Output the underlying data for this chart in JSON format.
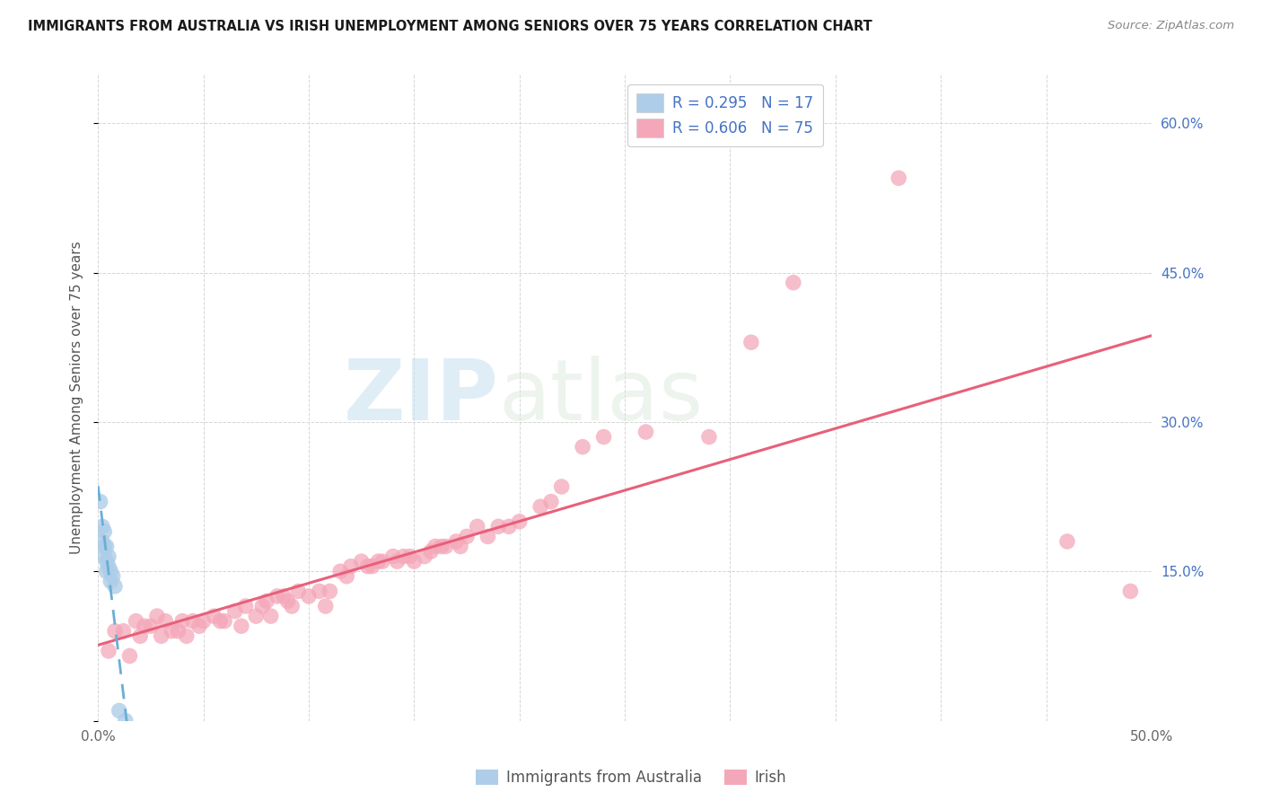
{
  "title": "IMMIGRANTS FROM AUSTRALIA VS IRISH UNEMPLOYMENT AMONG SENIORS OVER 75 YEARS CORRELATION CHART",
  "source": "Source: ZipAtlas.com",
  "ylabel": "Unemployment Among Seniors over 75 years",
  "xlim": [
    0,
    0.5
  ],
  "ylim": [
    0,
    0.65
  ],
  "legend_r1": "R = 0.295",
  "legend_n1": "N = 17",
  "legend_r2": "R = 0.606",
  "legend_n2": "N = 75",
  "color_australia": "#aecde8",
  "color_irish": "#f4a7b9",
  "trendline_australia_color": "#6aaed6",
  "trendline_irish_color": "#e8607a",
  "australia_scatter_x": [
    0.001,
    0.002,
    0.002,
    0.003,
    0.003,
    0.003,
    0.004,
    0.004,
    0.004,
    0.005,
    0.005,
    0.006,
    0.006,
    0.007,
    0.008,
    0.01,
    0.013
  ],
  "australia_scatter_y": [
    0.22,
    0.195,
    0.18,
    0.19,
    0.175,
    0.165,
    0.175,
    0.16,
    0.15,
    0.165,
    0.155,
    0.15,
    0.14,
    0.145,
    0.135,
    0.01,
    0.0
  ],
  "irish_scatter_x": [
    0.005,
    0.008,
    0.012,
    0.015,
    0.018,
    0.02,
    0.022,
    0.025,
    0.028,
    0.03,
    0.032,
    0.035,
    0.038,
    0.04,
    0.042,
    0.045,
    0.048,
    0.05,
    0.055,
    0.058,
    0.06,
    0.065,
    0.068,
    0.07,
    0.075,
    0.078,
    0.08,
    0.082,
    0.085,
    0.088,
    0.09,
    0.092,
    0.095,
    0.1,
    0.105,
    0.108,
    0.11,
    0.115,
    0.118,
    0.12,
    0.125,
    0.128,
    0.13,
    0.133,
    0.135,
    0.14,
    0.142,
    0.145,
    0.148,
    0.15,
    0.155,
    0.158,
    0.16,
    0.163,
    0.165,
    0.17,
    0.172,
    0.175,
    0.18,
    0.185,
    0.19,
    0.195,
    0.2,
    0.21,
    0.215,
    0.22,
    0.23,
    0.24,
    0.26,
    0.29,
    0.31,
    0.33,
    0.38,
    0.46,
    0.49
  ],
  "irish_scatter_y": [
    0.07,
    0.09,
    0.09,
    0.065,
    0.1,
    0.085,
    0.095,
    0.095,
    0.105,
    0.085,
    0.1,
    0.09,
    0.09,
    0.1,
    0.085,
    0.1,
    0.095,
    0.1,
    0.105,
    0.1,
    0.1,
    0.11,
    0.095,
    0.115,
    0.105,
    0.115,
    0.12,
    0.105,
    0.125,
    0.125,
    0.12,
    0.115,
    0.13,
    0.125,
    0.13,
    0.115,
    0.13,
    0.15,
    0.145,
    0.155,
    0.16,
    0.155,
    0.155,
    0.16,
    0.16,
    0.165,
    0.16,
    0.165,
    0.165,
    0.16,
    0.165,
    0.17,
    0.175,
    0.175,
    0.175,
    0.18,
    0.175,
    0.185,
    0.195,
    0.185,
    0.195,
    0.195,
    0.2,
    0.215,
    0.22,
    0.235,
    0.275,
    0.285,
    0.29,
    0.285,
    0.38,
    0.44,
    0.545,
    0.18,
    0.13
  ],
  "background_color": "#ffffff",
  "grid_color": "#cccccc"
}
